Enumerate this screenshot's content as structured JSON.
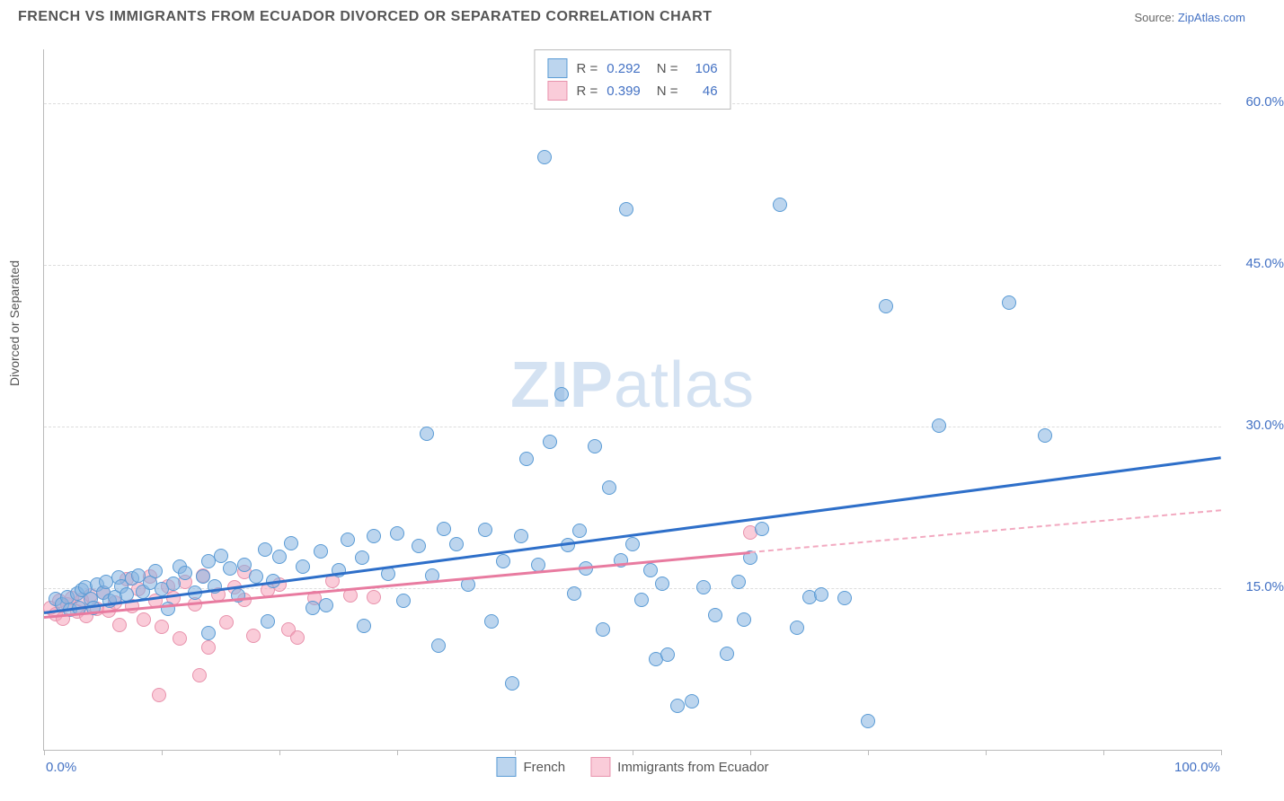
{
  "header": {
    "title": "FRENCH VS IMMIGRANTS FROM ECUADOR DIVORCED OR SEPARATED CORRELATION CHART",
    "source_prefix": "Source: ",
    "source_link": "ZipAtlas.com"
  },
  "chart": {
    "type": "scatter",
    "ylabel": "Divorced or Separated",
    "background_color": "#ffffff",
    "grid_color": "#dddddd",
    "xlim": [
      0,
      100
    ],
    "ylim": [
      0,
      65
    ],
    "yticks": [
      {
        "v": 15,
        "label": "15.0%"
      },
      {
        "v": 30,
        "label": "30.0%"
      },
      {
        "v": 45,
        "label": "45.0%"
      },
      {
        "v": 60,
        "label": "60.0%"
      }
    ],
    "xticks": [
      {
        "v": 0,
        "label": "0.0%"
      },
      {
        "v": 100,
        "label": "100.0%"
      },
      {
        "v": 10,
        "label": ""
      },
      {
        "v": 20,
        "label": ""
      },
      {
        "v": 30,
        "label": ""
      },
      {
        "v": 40,
        "label": ""
      },
      {
        "v": 50,
        "label": ""
      },
      {
        "v": 60,
        "label": ""
      },
      {
        "v": 70,
        "label": ""
      },
      {
        "v": 80,
        "label": ""
      },
      {
        "v": 90,
        "label": ""
      }
    ],
    "watermark": "ZIPatlas",
    "legend_top": {
      "rows": [
        {
          "swatch": "blue",
          "r_label": "R =",
          "r_value": "0.292",
          "n_label": "N =",
          "n_value": "106"
        },
        {
          "swatch": "pink",
          "r_label": "R =",
          "r_value": "0.399",
          "n_label": "N =",
          "n_value": "46"
        }
      ]
    },
    "legend_bottom": {
      "items": [
        {
          "swatch": "blue",
          "label": "French"
        },
        {
          "swatch": "pink",
          "label": "Immigrants from Ecuador"
        }
      ]
    },
    "series": {
      "french": {
        "color": "#85b2e0",
        "border": "#5a9bd5",
        "trend": {
          "x1": 0,
          "y1": 12.8,
          "x2": 100,
          "y2": 27.2,
          "color": "#2e6fc9"
        },
        "points": [
          [
            1,
            14
          ],
          [
            1.5,
            13.5
          ],
          [
            2,
            14.2
          ],
          [
            2.2,
            13
          ],
          [
            2.8,
            14.5
          ],
          [
            3,
            13.2
          ],
          [
            3.2,
            14.8
          ],
          [
            3.5,
            15.1
          ],
          [
            4,
            14
          ],
          [
            4.2,
            13.2
          ],
          [
            4.5,
            15.3
          ],
          [
            5,
            14.6
          ],
          [
            5.3,
            15.6
          ],
          [
            5.6,
            13.8
          ],
          [
            6,
            14.2
          ],
          [
            6.3,
            16
          ],
          [
            6.6,
            15.2
          ],
          [
            7,
            14.4
          ],
          [
            7.5,
            15.9
          ],
          [
            8,
            16.2
          ],
          [
            8.4,
            14.7
          ],
          [
            9,
            15.5
          ],
          [
            9.5,
            16.6
          ],
          [
            10,
            14.9
          ],
          [
            10.5,
            13.1
          ],
          [
            11,
            15.4
          ],
          [
            11.5,
            17
          ],
          [
            12,
            16.4
          ],
          [
            12.8,
            14.6
          ],
          [
            13.5,
            16.1
          ],
          [
            14,
            17.5
          ],
          [
            14.5,
            15.2
          ],
          [
            15,
            18
          ],
          [
            15.8,
            16.8
          ],
          [
            16.5,
            14.3
          ],
          [
            17,
            17.2
          ],
          [
            18,
            16.1
          ],
          [
            18.8,
            18.6
          ],
          [
            19.5,
            15.7
          ],
          [
            20,
            17.9
          ],
          [
            21,
            19.2
          ],
          [
            22,
            17
          ],
          [
            22.8,
            13.2
          ],
          [
            23.5,
            18.4
          ],
          [
            25,
            16.7
          ],
          [
            25.8,
            19.5
          ],
          [
            27,
            17.8
          ],
          [
            27.2,
            11.5
          ],
          [
            28,
            19.8
          ],
          [
            29.2,
            16.3
          ],
          [
            30,
            20.1
          ],
          [
            30.5,
            13.8
          ],
          [
            31.8,
            18.9
          ],
          [
            32.5,
            29.3
          ],
          [
            33,
            16.2
          ],
          [
            34,
            20.5
          ],
          [
            35,
            19.1
          ],
          [
            36,
            15.3
          ],
          [
            37.5,
            20.4
          ],
          [
            38,
            11.9
          ],
          [
            39,
            17.5
          ],
          [
            40.5,
            19.8
          ],
          [
            41,
            27
          ],
          [
            42.5,
            55
          ],
          [
            42,
            17.2
          ],
          [
            43,
            28.6
          ],
          [
            44,
            33
          ],
          [
            44.5,
            19
          ],
          [
            45,
            14.5
          ],
          [
            45.5,
            20.3
          ],
          [
            46,
            16.8
          ],
          [
            46.8,
            28.2
          ],
          [
            47.5,
            11.2
          ],
          [
            48,
            24.3
          ],
          [
            49,
            17.6
          ],
          [
            49.5,
            50.2
          ],
          [
            50,
            19.1
          ],
          [
            50.8,
            13.9
          ],
          [
            51.5,
            16.7
          ],
          [
            52,
            8.4
          ],
          [
            52.5,
            15.4
          ],
          [
            53,
            8.8
          ],
          [
            53.8,
            4.1
          ],
          [
            55,
            4.5
          ],
          [
            56,
            15.1
          ],
          [
            57,
            12.5
          ],
          [
            58,
            8.9
          ],
          [
            59,
            15.6
          ],
          [
            59.5,
            12.1
          ],
          [
            60,
            17.8
          ],
          [
            61,
            20.5
          ],
          [
            62.5,
            50.6
          ],
          [
            64,
            11.3
          ],
          [
            65,
            14.2
          ],
          [
            66,
            14.4
          ],
          [
            68,
            14.1
          ],
          [
            70,
            2.7
          ],
          [
            71.5,
            41.2
          ],
          [
            76,
            30.1
          ],
          [
            82,
            41.5
          ],
          [
            85,
            29.2
          ],
          [
            14,
            10.8
          ],
          [
            19,
            11.9
          ],
          [
            24,
            13.4
          ],
          [
            33.5,
            9.7
          ],
          [
            39.8,
            6.2
          ]
        ]
      },
      "ecuador": {
        "color": "#f5a3b9",
        "border": "#e892ac",
        "trend_solid": {
          "x1": 0,
          "y1": 12.4,
          "x2": 60,
          "y2": 18.4,
          "color": "#e87ba0"
        },
        "trend_dashed": {
          "x1": 60,
          "y1": 18.4,
          "x2": 100,
          "y2": 22.3,
          "color": "#f2a9c0"
        },
        "points": [
          [
            0.5,
            13.2
          ],
          [
            1,
            12.6
          ],
          [
            1.3,
            13.8
          ],
          [
            1.6,
            12.2
          ],
          [
            2,
            13.5
          ],
          [
            2.4,
            14.1
          ],
          [
            2.8,
            12.8
          ],
          [
            3.2,
            13.9
          ],
          [
            3.6,
            12.4
          ],
          [
            4,
            14.3
          ],
          [
            4.5,
            13.1
          ],
          [
            5,
            14.6
          ],
          [
            5.5,
            12.9
          ],
          [
            6,
            13.7
          ],
          [
            6.4,
            11.6
          ],
          [
            7,
            15.8
          ],
          [
            7.5,
            13.3
          ],
          [
            8,
            14.9
          ],
          [
            8.5,
            12.1
          ],
          [
            9,
            16.1
          ],
          [
            9.5,
            13.8
          ],
          [
            10,
            11.4
          ],
          [
            10.5,
            15.2
          ],
          [
            11,
            14.1
          ],
          [
            11.5,
            10.3
          ],
          [
            12,
            15.6
          ],
          [
            12.8,
            13.5
          ],
          [
            13.5,
            16.2
          ],
          [
            14,
            9.5
          ],
          [
            14.8,
            14.4
          ],
          [
            15.5,
            11.8
          ],
          [
            16.2,
            15.1
          ],
          [
            17,
            16.5
          ],
          [
            17.8,
            10.6
          ],
          [
            19,
            14.8
          ],
          [
            20,
            15.3
          ],
          [
            20.8,
            11.2
          ],
          [
            21.5,
            10.4
          ],
          [
            23,
            14.1
          ],
          [
            24.5,
            15.7
          ],
          [
            26,
            14.3
          ],
          [
            13.2,
            6.9
          ],
          [
            9.8,
            5.1
          ],
          [
            28,
            14.2
          ],
          [
            60,
            20.2
          ],
          [
            17,
            13.9
          ]
        ]
      }
    }
  }
}
